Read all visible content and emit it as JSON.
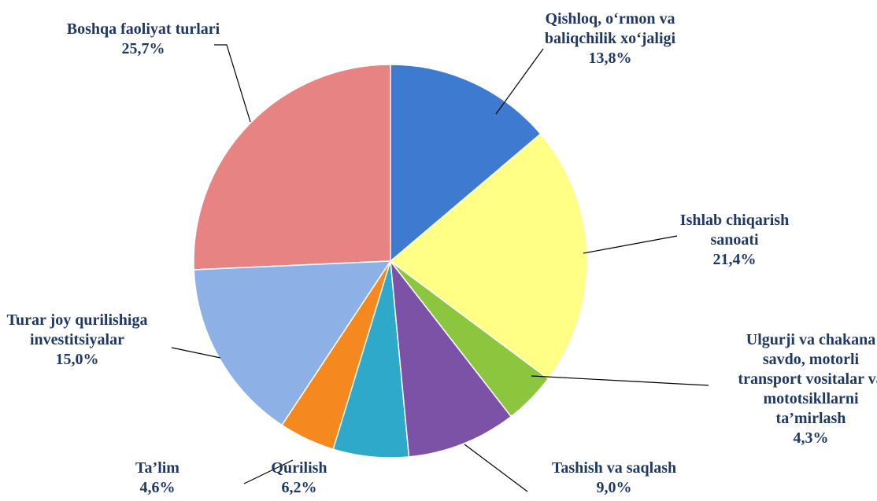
{
  "chart_data": {
    "type": "pie",
    "categories": [
      "Qishloq, o‘rmon va baliqchilik xo‘jaligi",
      "Ishlab chiqarish sanoati",
      "Ulgurji va chakana savdo, motorli transport vositalar va mototsikllarni ta’mirlash",
      "Tashish va saqlash",
      "Qurilish",
      "Ta’lim",
      "Turar joy qurilishiga investitsiyalar",
      "Boshqa faoliyat turlari"
    ],
    "values": [
      13.8,
      21.4,
      4.3,
      9.0,
      6.2,
      4.6,
      15.0,
      25.7
    ],
    "value_labels": [
      "13,8%",
      "21,4%",
      "4,3%",
      "9,0%",
      "6,2%",
      "4,6%",
      "15,0%",
      "25,7%"
    ],
    "colors": [
      "#3d7ad0",
      "#ffff85",
      "#8cc63e",
      "#7b52a6",
      "#2ea9c9",
      "#f5891f",
      "#8db0e6",
      "#e88383"
    ]
  }
}
